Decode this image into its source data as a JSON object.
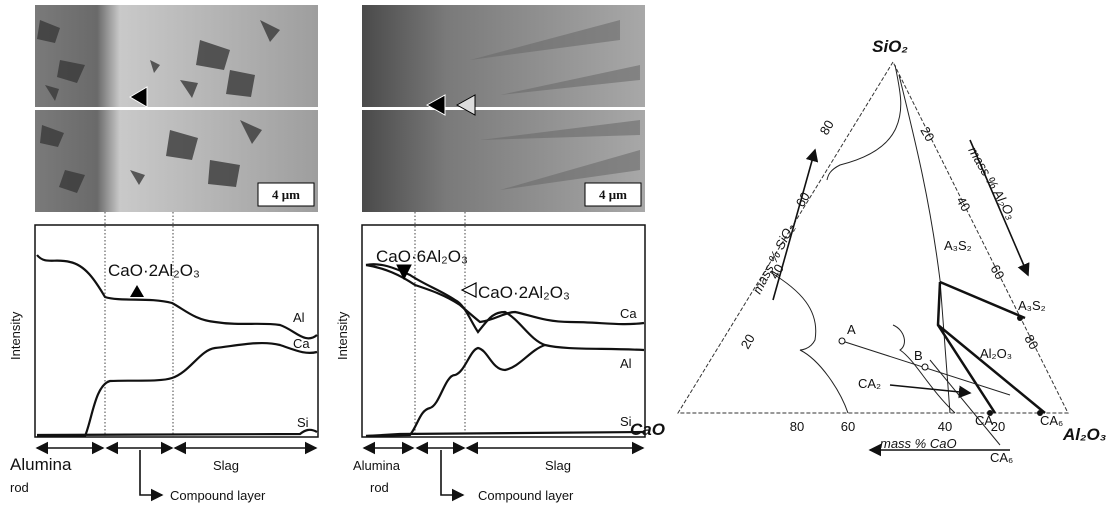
{
  "panels": [
    {
      "scale_bar": "4 μm",
      "phase_labels": [
        "CaO·2Al₂O₃"
      ],
      "curve_labels": [
        "Al",
        "Ca",
        "Si"
      ],
      "y_axis": "Intensity",
      "alumina_rod": [
        "Alumina",
        "rod"
      ],
      "slag": "Slag",
      "compound_layer": "Compound layer"
    },
    {
      "scale_bar": "4 μm",
      "phase_labels": [
        "CaO·6Al₂O₃",
        "CaO·2Al₂O₃"
      ],
      "curve_labels": [
        "Ca",
        "Al",
        "Si"
      ],
      "y_axis": "Intensity",
      "alumina_rod": [
        "Alumina",
        "rod"
      ],
      "slag": "Slag",
      "compound_layer": "Compound layer"
    }
  ],
  "ternary": {
    "corners": {
      "top": "SiO₂",
      "left": "CaO",
      "right": "Al₂O₃"
    },
    "axis_titles": {
      "left": "mass % SiO₂",
      "right": "mass % Al₂O₃",
      "bottom": "mass % CaO"
    },
    "left_ticks": [
      80,
      60,
      40,
      20
    ],
    "right_ticks": [
      20,
      40,
      60,
      80
    ],
    "bottom_ticks": [
      80,
      60,
      40,
      20
    ],
    "labels": {
      "a3s2_field": "A₃S₂",
      "a3s2_point": "A₃S₂",
      "al2o3_field": "Al₂O₃",
      "a": "A",
      "b": "B",
      "ca2": "CA₂",
      "ca": "CA",
      "ca6_point": "CA₆",
      "ca6": "CA₆"
    }
  }
}
